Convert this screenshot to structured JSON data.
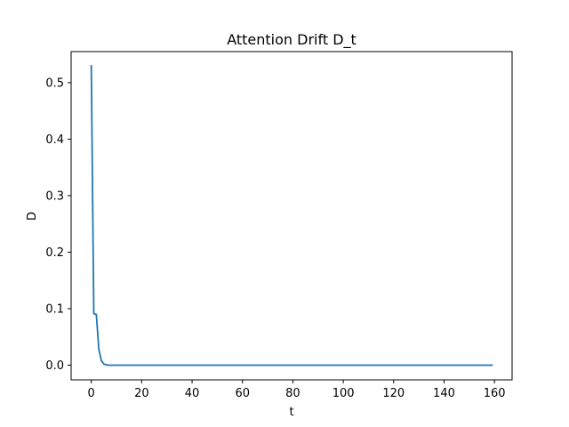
{
  "chart_data": {
    "type": "line",
    "title": "Attention Drift D_t",
    "xlabel": "t",
    "ylabel": "D",
    "xlim": [
      -8,
      167
    ],
    "ylim": [
      -0.026,
      0.555
    ],
    "x_ticks": [
      0,
      20,
      40,
      60,
      80,
      100,
      120,
      140,
      160
    ],
    "y_ticks": [
      0.0,
      0.1,
      0.2,
      0.3,
      0.4,
      0.5
    ],
    "y_tick_labels": [
      "0.0",
      "0.1",
      "0.2",
      "0.3",
      "0.4",
      "0.5"
    ],
    "grid": false,
    "series": [
      {
        "color": "#1f77b4",
        "x": [
          0,
          1,
          2,
          3,
          4,
          5,
          6,
          7,
          8,
          10,
          20,
          40,
          60,
          80,
          100,
          120,
          140,
          159
        ],
        "y": [
          0.53,
          0.091,
          0.09,
          0.028,
          0.008,
          0.002,
          0.0005,
          0.0001,
          0.0,
          0.0,
          0.0,
          0.0,
          0.0,
          0.0,
          0.0,
          0.0,
          0.0,
          0.0
        ]
      }
    ]
  }
}
